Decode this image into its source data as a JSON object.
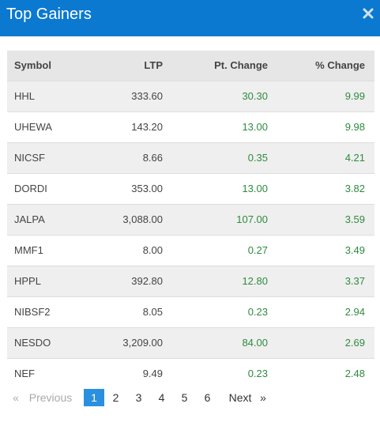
{
  "header": {
    "title": "Top Gainers",
    "close_icon": "close-icon"
  },
  "table": {
    "columns": [
      "Symbol",
      "LTP",
      "Pt. Change",
      "% Change"
    ],
    "rows": [
      {
        "symbol": "HHL",
        "ltp": "333.60",
        "pt_change": "30.30",
        "pct_change": "9.99"
      },
      {
        "symbol": "UHEWA",
        "ltp": "143.20",
        "pt_change": "13.00",
        "pct_change": "9.98"
      },
      {
        "symbol": "NICSF",
        "ltp": "8.66",
        "pt_change": "0.35",
        "pct_change": "4.21"
      },
      {
        "symbol": "DORDI",
        "ltp": "353.00",
        "pt_change": "13.00",
        "pct_change": "3.82"
      },
      {
        "symbol": "JALPA",
        "ltp": "3,088.00",
        "pt_change": "107.00",
        "pct_change": "3.59"
      },
      {
        "symbol": "MMF1",
        "ltp": "8.00",
        "pt_change": "0.27",
        "pct_change": "3.49"
      },
      {
        "symbol": "HPPL",
        "ltp": "392.80",
        "pt_change": "12.80",
        "pct_change": "3.37"
      },
      {
        "symbol": "NIBSF2",
        "ltp": "8.05",
        "pt_change": "0.23",
        "pct_change": "2.94"
      },
      {
        "symbol": "NESDO",
        "ltp": "3,209.00",
        "pt_change": "84.00",
        "pct_change": "2.69"
      },
      {
        "symbol": "NEF",
        "ltp": "9.49",
        "pt_change": "0.23",
        "pct_change": "2.48"
      }
    ]
  },
  "pagination": {
    "first": "«",
    "previous": "Previous",
    "pages": [
      "1",
      "2",
      "3",
      "4",
      "5",
      "6"
    ],
    "active_page": "1",
    "next": "Next",
    "last": "»"
  },
  "colors": {
    "header_bg": "#0b79d0",
    "gain_text": "#2e8b3e",
    "active_page_bg": "#2b8fe0"
  }
}
